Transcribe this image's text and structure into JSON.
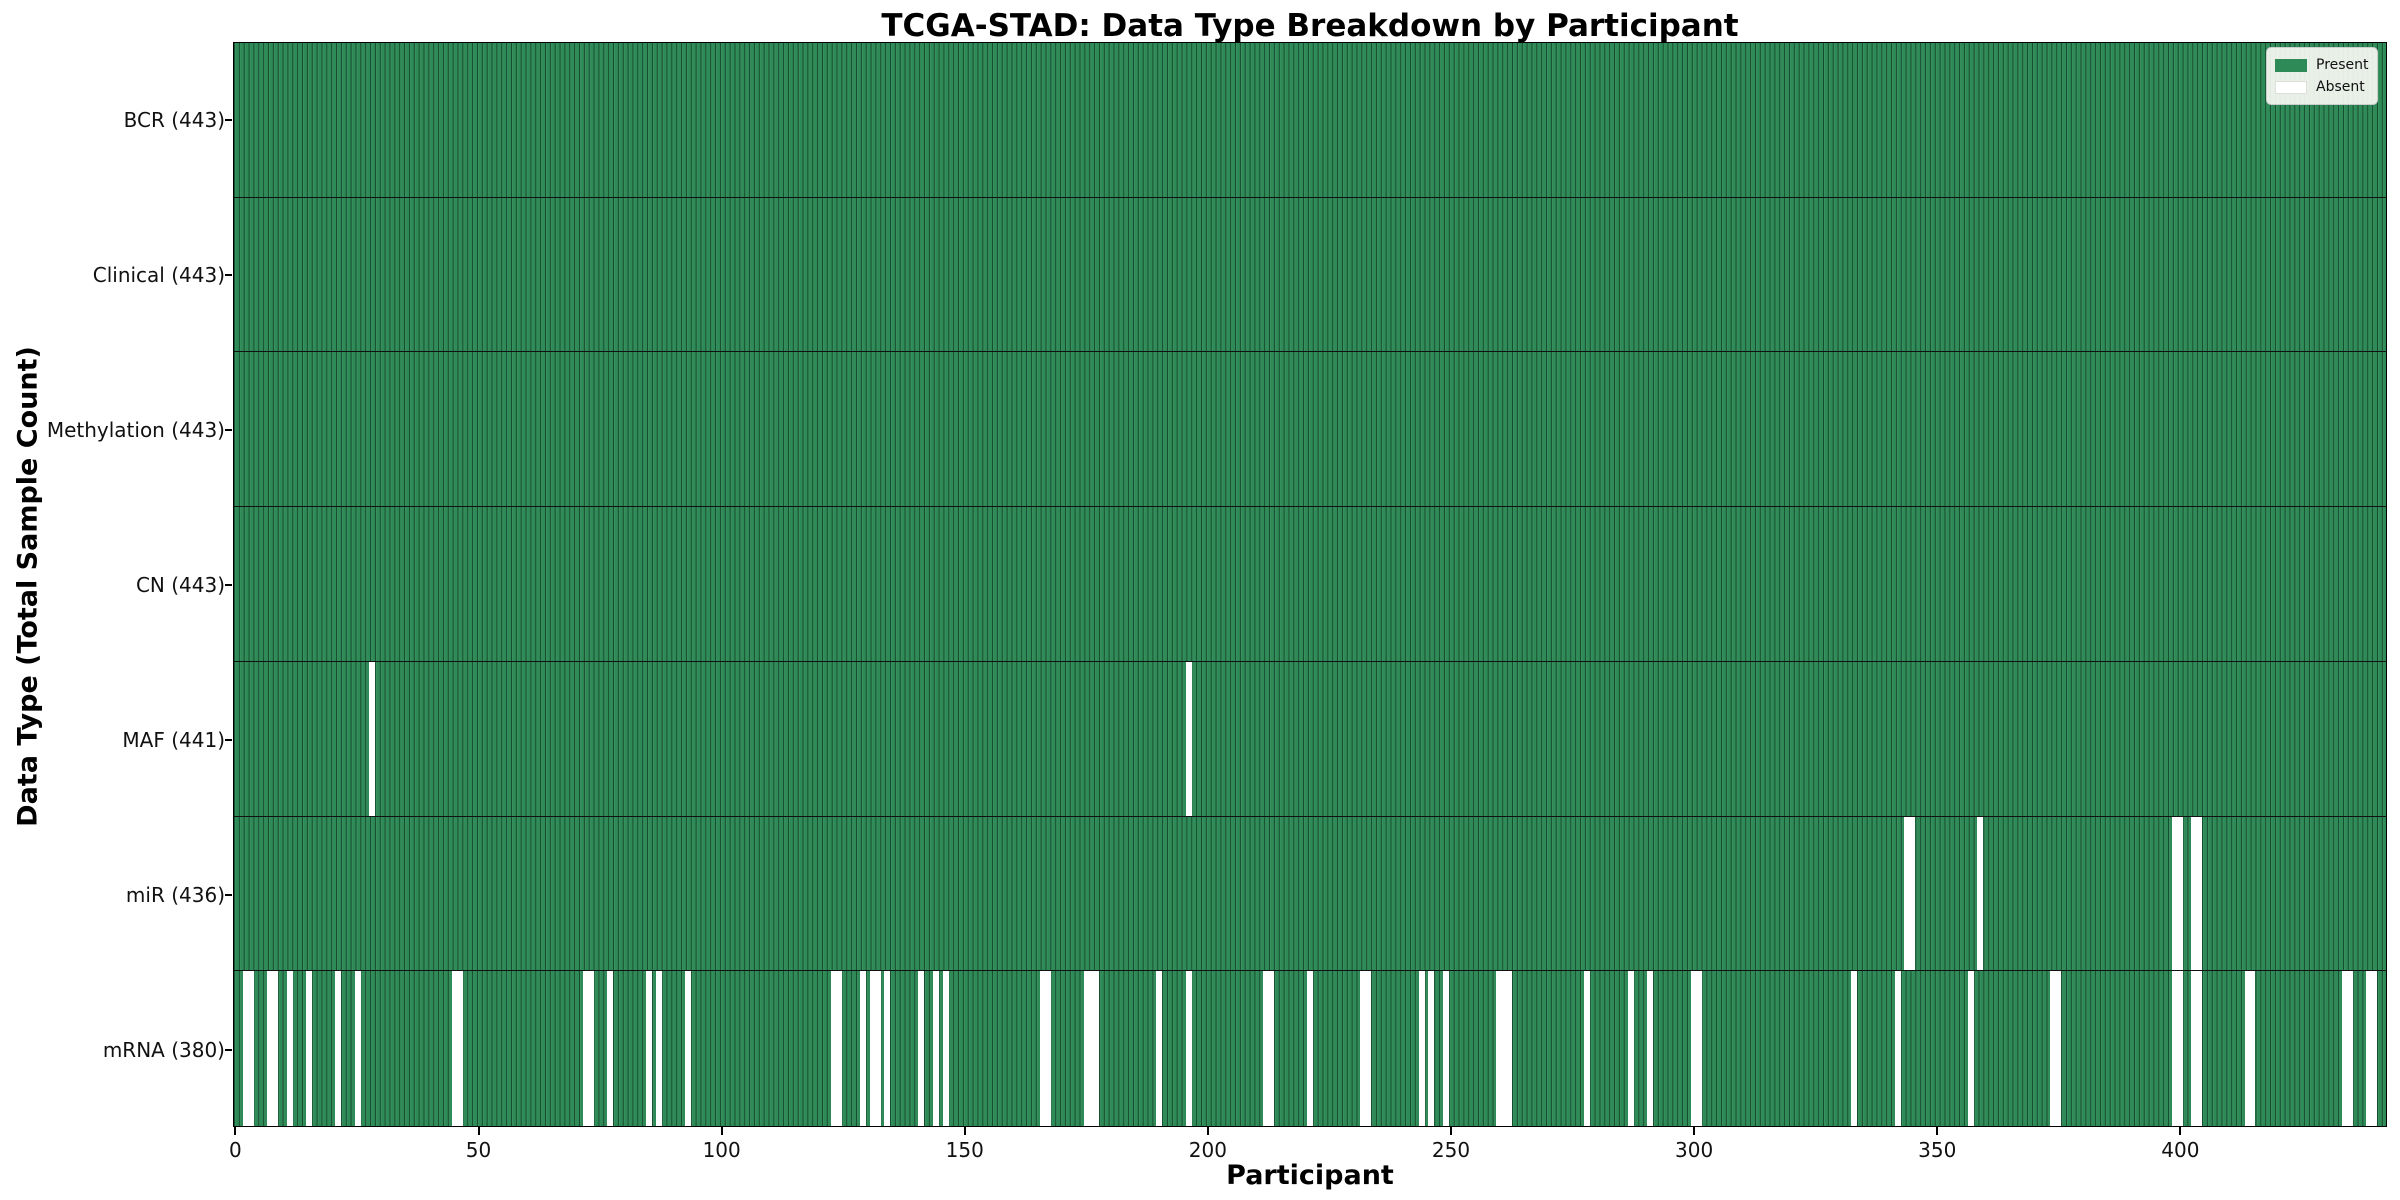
{
  "title": "TCGA-STAD: Data Type Breakdown by Participant",
  "axis": {
    "xlabel": "Participant",
    "ylabel": "Data Type (Total Sample Count)"
  },
  "legend": {
    "entries": [
      {
        "label": "Present",
        "color": "#2e8b57"
      },
      {
        "label": "Absent",
        "color": "#ffffff"
      }
    ]
  },
  "colors": {
    "present": "#2e8b57",
    "absent": "#ffffff",
    "bar_edge": "rgba(8,34,20,0.62)",
    "spine": "#000000",
    "legend_background": "rgba(248,248,244,0.92)"
  },
  "chart_data": {
    "type": "heatmap",
    "title": "TCGA-STAD: Data Type Breakdown by Participant",
    "xlabel": "Participant",
    "ylabel": "Data Type (Total Sample Count)",
    "x_ticks": [
      0,
      50,
      100,
      150,
      200,
      250,
      300,
      350,
      400
    ],
    "x_range": [
      0,
      443
    ],
    "n_participants": 443,
    "cell_states": {
      "present": 1,
      "absent": 0
    },
    "legend_position": "upper right",
    "grid": "row separators only",
    "rows": [
      {
        "label": "BCR (443)",
        "data_type": "BCR",
        "total_count": 443,
        "absent_participants": []
      },
      {
        "label": "Clinical (443)",
        "data_type": "Clinical",
        "total_count": 443,
        "absent_participants": []
      },
      {
        "label": "Methylation (443)",
        "data_type": "Methylation",
        "total_count": 443,
        "absent_participants": []
      },
      {
        "label": "CN (443)",
        "data_type": "CN",
        "total_count": 443,
        "absent_participants": []
      },
      {
        "label": "MAF (441)",
        "data_type": "MAF",
        "total_count": 441,
        "absent_participants": [
          28,
          196
        ]
      },
      {
        "label": "miR (436)",
        "data_type": "miR",
        "total_count": 436,
        "absent_participants": [
          344,
          345,
          359,
          399,
          400,
          403,
          404
        ]
      },
      {
        "label": "mRNA (380)",
        "data_type": "mRNA",
        "total_count": 380,
        "absent_participants": [
          2,
          3,
          7,
          8,
          11,
          15,
          21,
          25,
          45,
          46,
          72,
          73,
          77,
          85,
          87,
          93,
          123,
          124,
          129,
          131,
          132,
          134,
          141,
          144,
          146,
          166,
          167,
          175,
          176,
          177,
          190,
          196,
          212,
          213,
          221,
          232,
          233,
          244,
          246,
          249,
          260,
          261,
          262,
          278,
          287,
          291,
          300,
          301,
          333,
          342,
          357,
          374,
          375,
          399,
          400,
          403,
          404,
          414,
          415,
          434,
          435,
          439,
          440
        ]
      }
    ]
  }
}
